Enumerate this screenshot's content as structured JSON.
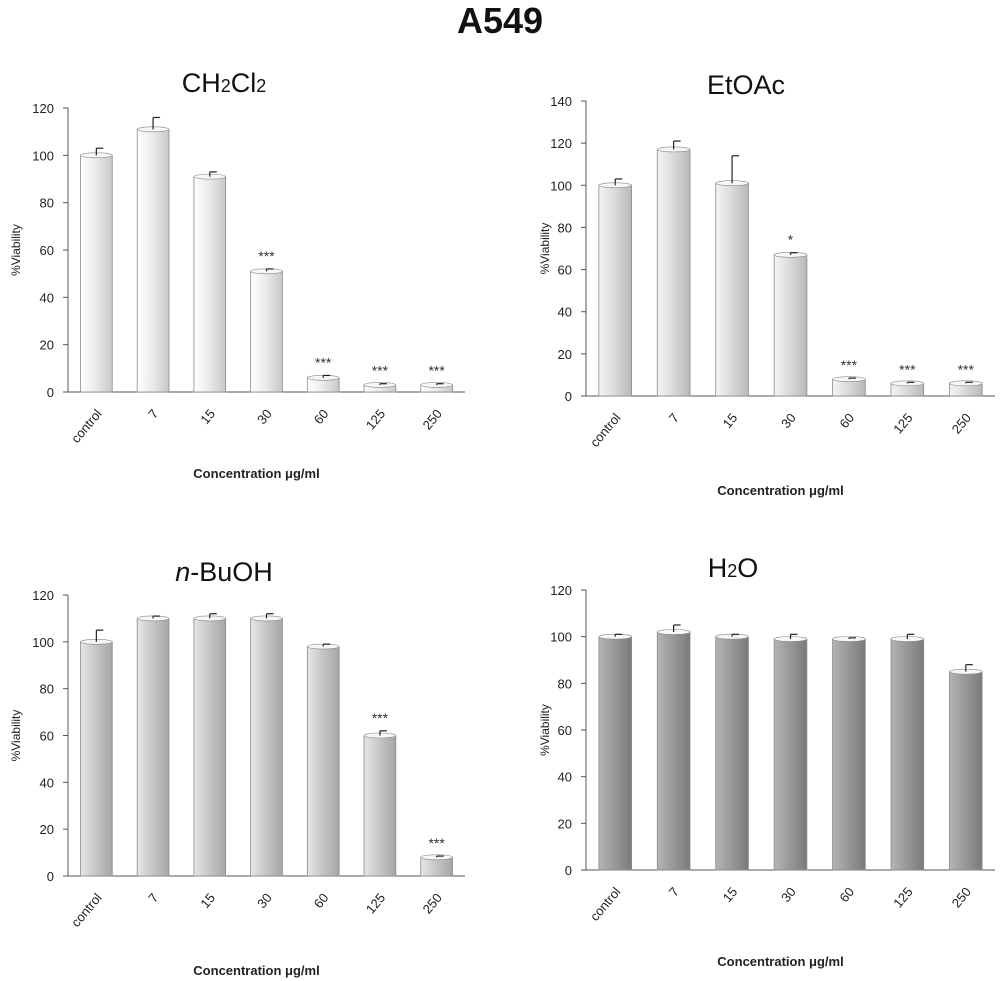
{
  "figure": {
    "title": "A549"
  },
  "chart_data": [
    {
      "type": "bar",
      "title": "CH2Cl2",
      "xlabel": "Concentration μg/ml",
      "ylabel": "%Viability",
      "ylim": [
        0,
        120
      ],
      "yticks": [
        0,
        20,
        40,
        60,
        80,
        100,
        120
      ],
      "categories": [
        "control",
        "7",
        "15",
        "30",
        "60",
        "125",
        "250"
      ],
      "values": [
        100,
        111,
        91,
        51,
        6,
        3,
        3
      ],
      "errors": [
        3,
        5,
        2,
        1,
        1,
        0.5,
        0.5
      ],
      "significance": [
        "",
        "",
        "",
        "***",
        "***",
        "***",
        "***"
      ],
      "bar_color": "#e6e6e6",
      "grid": false
    },
    {
      "type": "bar",
      "title": "EtOAc",
      "xlabel": "Concentration μg/ml",
      "ylabel": "%Viability",
      "ylim": [
        0,
        140
      ],
      "yticks": [
        0,
        20,
        40,
        60,
        80,
        100,
        120,
        140
      ],
      "categories": [
        "control",
        "7",
        "15",
        "30",
        "60",
        "125",
        "250"
      ],
      "values": [
        100,
        117,
        101,
        67,
        8,
        6,
        6
      ],
      "errors": [
        3,
        4,
        13,
        1,
        0.5,
        0.5,
        0.5
      ],
      "significance": [
        "",
        "",
        "",
        "*",
        "***",
        "***",
        "***"
      ],
      "bar_color": "#d9d9d9",
      "grid": false
    },
    {
      "type": "bar",
      "title": "n-BuOH",
      "xlabel": "Concentration μg/ml",
      "ylabel": "%Viability",
      "ylim": [
        0,
        120
      ],
      "yticks": [
        0,
        20,
        40,
        60,
        80,
        100,
        120
      ],
      "categories": [
        "control",
        "7",
        "15",
        "30",
        "60",
        "125",
        "250"
      ],
      "values": [
        100,
        110,
        110,
        110,
        98,
        60,
        8
      ],
      "errors": [
        5,
        1,
        2,
        2,
        1,
        2,
        0.5
      ],
      "significance": [
        "",
        "",
        "",
        "",
        "",
        "***",
        "***"
      ],
      "bar_color": "#c4c4c4",
      "grid": false
    },
    {
      "type": "bar",
      "title": "H2O",
      "xlabel": "Concentration μg/ml",
      "ylabel": "%Viability",
      "ylim": [
        0,
        120
      ],
      "yticks": [
        0,
        20,
        40,
        60,
        80,
        100,
        120
      ],
      "categories": [
        "control",
        "7",
        "15",
        "30",
        "60",
        "125",
        "250"
      ],
      "values": [
        100,
        102,
        100,
        99,
        99,
        99,
        85
      ],
      "errors": [
        1,
        3,
        1,
        2,
        0.5,
        2,
        3
      ],
      "significance": [
        "",
        "",
        "",
        "",
        "",
        "",
        ""
      ],
      "bar_color": "#9a9a9a",
      "grid": false
    }
  ]
}
